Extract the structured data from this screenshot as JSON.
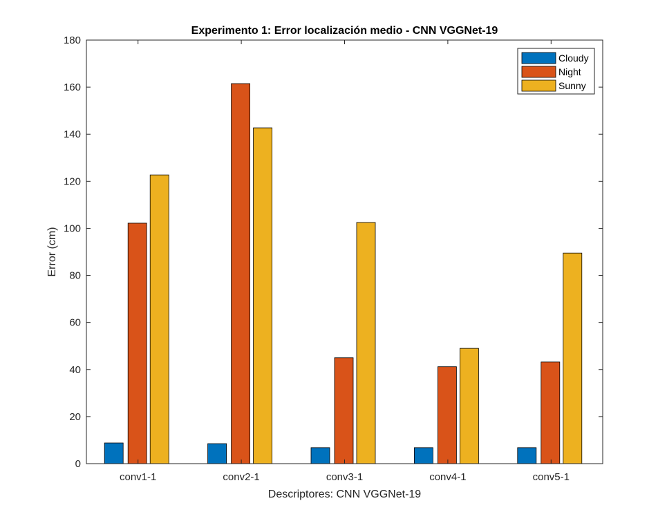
{
  "chart_data": {
    "type": "bar",
    "title": "Experimento 1: Error localización medio - CNN VGGNet-19",
    "xlabel": "Descriptores: CNN VGGNet-19",
    "ylabel": "Error (cm)",
    "categories": [
      "conv1-1",
      "conv2-1",
      "conv3-1",
      "conv4-1",
      "conv5-1"
    ],
    "ylim": [
      0,
      180
    ],
    "yticks": [
      0,
      20,
      40,
      60,
      80,
      100,
      120,
      140,
      160,
      180
    ],
    "ytick_labels": [
      "0",
      "20",
      "40",
      "60",
      "80",
      "100",
      "120",
      "140",
      "160",
      "180"
    ],
    "series": [
      {
        "name": "Cloudy",
        "color": "#0072BD",
        "values": [
          8.8,
          8.5,
          6.8,
          6.8,
          6.8
        ]
      },
      {
        "name": "Night",
        "color": "#D95319",
        "values": [
          102.2,
          161.5,
          45.0,
          41.2,
          43.2
        ]
      },
      {
        "name": "Sunny",
        "color": "#EDB120",
        "values": [
          122.7,
          142.7,
          102.5,
          49.0,
          89.5
        ]
      }
    ],
    "legend_position": "top-right",
    "grid": false
  }
}
